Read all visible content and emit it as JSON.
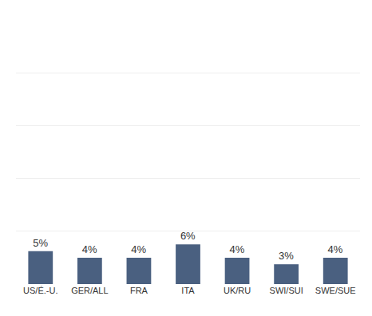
{
  "chart_data": {
    "type": "bar",
    "categories": [
      "US/É.-U.",
      "GER/ALL",
      "FRA",
      "ITA",
      "UK/RU",
      "SWI/SUI",
      "SWE/SUE"
    ],
    "values": [
      5,
      4,
      4,
      6,
      4,
      3,
      4
    ],
    "value_labels": [
      "5%",
      "4%",
      "4%",
      "6%",
      "4%",
      "3%",
      "4%"
    ],
    "data_labels": true,
    "color": "#4a6080",
    "ylim": [
      0,
      40
    ],
    "yticks": [
      0,
      8,
      16,
      24,
      32,
      40
    ],
    "grid": true,
    "tick_labels": "x"
  }
}
